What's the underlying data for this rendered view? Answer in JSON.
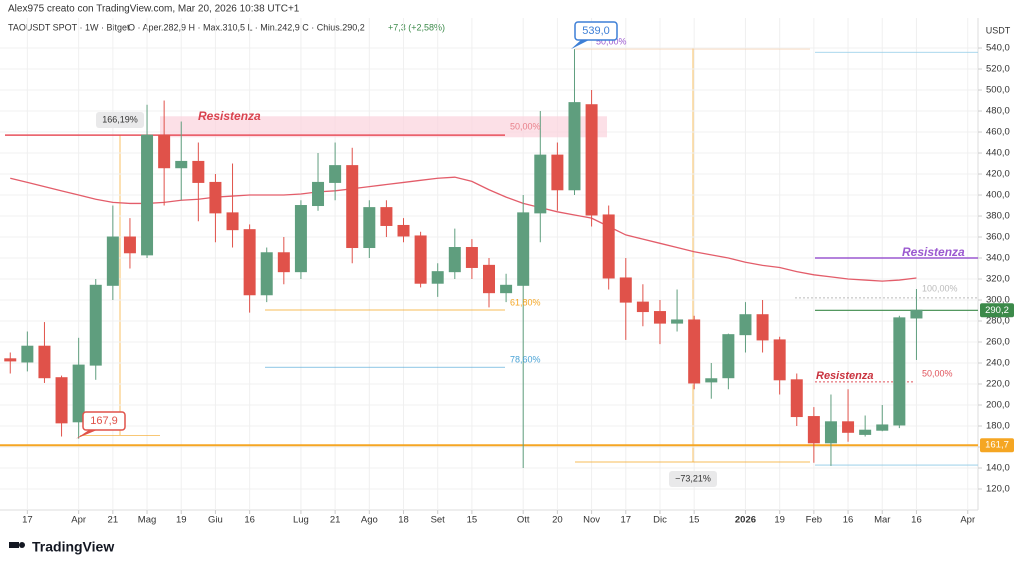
{
  "chart_data": {
    "type": "candlestick",
    "byline": "Alex975 creato con TradingView.com, Mar 20, 2026 10:38 UTC+1",
    "title": "TAOUSDT SPOT · 1W · Bitget",
    "ohlc_text": "O · Aper.282,9  H · Max.310,5  L · Min.242,9  C · Chius.290,2",
    "change_text": "+7,3 (+2,58%)",
    "unit": "USDT",
    "brand": "TradingView",
    "up_color": "#5f9e7e",
    "down_color": "#e0524a",
    "ma_color": "#e35d6a",
    "open": [
      244,
      241,
      256,
      226,
      184,
      238,
      314,
      360,
      343,
      457,
      426,
      432,
      412,
      383,
      367,
      305,
      345,
      327,
      390,
      412,
      428,
      350,
      388,
      371,
      361,
      316,
      327,
      350,
      333,
      307,
      314,
      383,
      438,
      405,
      486,
      381,
      321,
      298,
      289,
      278,
      281,
      222,
      226,
      267,
      286,
      262,
      224,
      189,
      164,
      184,
      172,
      176,
      181,
      282.9
    ],
    "high": [
      250,
      270,
      279,
      228,
      264,
      320,
      390,
      378,
      486,
      490,
      470,
      450,
      420,
      430,
      372,
      350,
      360,
      395,
      440,
      450,
      445,
      395,
      395,
      378,
      365,
      335,
      368,
      358,
      340,
      325,
      400,
      480,
      450,
      539,
      500,
      390,
      340,
      315,
      300,
      310,
      285,
      240,
      268,
      298,
      300,
      265,
      230,
      198,
      210,
      215,
      190,
      200,
      285,
      310.5
    ],
    "low": [
      230,
      232,
      221,
      170,
      167.9,
      224,
      300,
      330,
      340,
      390,
      395,
      375,
      355,
      350,
      288,
      298,
      315,
      320,
      385,
      395,
      335,
      340,
      360,
      355,
      312,
      303,
      320,
      320,
      293,
      298,
      140,
      355,
      385,
      400,
      370,
      310,
      262,
      275,
      258,
      270,
      215,
      206,
      215,
      250,
      250,
      210,
      180,
      145,
      142,
      165,
      170,
      175,
      178,
      242.9
    ],
    "close": [
      242,
      256,
      226,
      183,
      238,
      314,
      360,
      345,
      457,
      426,
      432,
      412,
      383,
      367,
      305,
      345,
      327,
      390,
      412,
      428,
      350,
      388,
      371,
      361,
      316,
      327,
      350,
      331,
      307,
      314,
      383,
      438,
      405,
      488,
      381,
      321,
      298,
      289,
      278,
      281,
      221,
      225,
      267,
      286,
      262,
      224,
      189,
      164,
      184,
      174,
      176,
      181,
      283,
      290.2
    ],
    "ma": [
      416,
      412,
      408,
      404,
      400,
      396,
      393,
      392,
      392,
      393,
      395,
      396,
      398,
      399,
      400,
      400,
      400,
      401,
      403,
      404,
      406,
      408,
      410,
      412,
      414,
      416,
      417,
      413,
      405,
      398,
      392,
      388,
      384,
      381,
      378,
      370,
      362,
      358,
      354,
      350,
      346,
      343,
      340,
      336,
      333,
      331,
      327,
      324,
      322,
      320,
      319,
      318,
      319,
      321
    ],
    "xlim": [
      -0.6,
      56.6
    ],
    "xticks": [
      {
        "value": 1,
        "label": "17"
      },
      {
        "value": 4,
        "label": "Apr"
      },
      {
        "value": 6,
        "label": "21"
      },
      {
        "value": 8,
        "label": "Mag"
      },
      {
        "value": 10,
        "label": "19"
      },
      {
        "value": 12,
        "label": "Giu"
      },
      {
        "value": 14,
        "label": "16"
      },
      {
        "value": 17,
        "label": "Lug"
      },
      {
        "value": 19,
        "label": "21"
      },
      {
        "value": 21,
        "label": "Ago"
      },
      {
        "value": 23,
        "label": "18"
      },
      {
        "value": 25,
        "label": "Set"
      },
      {
        "value": 27,
        "label": "15"
      },
      {
        "value": 30,
        "label": "Ott"
      },
      {
        "value": 32,
        "label": "20"
      },
      {
        "value": 34,
        "label": "Nov"
      },
      {
        "value": 36,
        "label": "17"
      },
      {
        "value": 38,
        "label": "Dic"
      },
      {
        "value": 40,
        "label": "15"
      },
      {
        "value": 43,
        "label": "2026"
      },
      {
        "value": 45,
        "label": "19"
      },
      {
        "value": 47,
        "label": "Feb"
      },
      {
        "value": 49,
        "label": "16"
      },
      {
        "value": 51,
        "label": "Mar"
      },
      {
        "value": 53,
        "label": "16"
      },
      {
        "value": 56,
        "label": "Apr"
      }
    ],
    "ylim": [
      100,
      568.6
    ],
    "yticks": [
      {
        "value": 120,
        "label": "120,0"
      },
      {
        "value": 140,
        "label": "140,0"
      },
      {
        "value": 160,
        "label": "160,0"
      },
      {
        "value": 180,
        "label": "180,0"
      },
      {
        "value": 200,
        "label": "200,0"
      },
      {
        "value": 220,
        "label": "220,0"
      },
      {
        "value": 240,
        "label": "240,0"
      },
      {
        "value": 260,
        "label": "260,0"
      },
      {
        "value": 280,
        "label": "280,0"
      },
      {
        "value": 300,
        "label": "300,0"
      },
      {
        "value": 320,
        "label": "320,0"
      },
      {
        "value": 340,
        "label": "340,0"
      },
      {
        "value": 360,
        "label": "360,0"
      },
      {
        "value": 380,
        "label": "380,0"
      },
      {
        "value": 400,
        "label": "400,0"
      },
      {
        "value": 420,
        "label": "420,0"
      },
      {
        "value": 440,
        "label": "440,0"
      },
      {
        "value": 460,
        "label": "460,0"
      },
      {
        "value": 480,
        "label": "480,0"
      },
      {
        "value": 500,
        "label": "500,0"
      },
      {
        "value": 520,
        "label": "520,0"
      },
      {
        "value": 540,
        "label": "540,0"
      }
    ],
    "grid": true,
    "band": {
      "low": 455,
      "high": 475,
      "color": "#fbd3dd"
    },
    "levels": [
      {
        "value": 457,
        "color": "#e8505b"
      },
      {
        "value": 161.7,
        "color": "#f5a623"
      },
      {
        "value": 340,
        "color": "#9b59d0"
      },
      {
        "value": 290.2,
        "color": "#3c8a4a"
      },
      {
        "value": 171,
        "color": "#f5a623"
      },
      {
        "value": 290.5,
        "color": "#f5a623"
      },
      {
        "value": 236,
        "color": "#4aa3d6"
      },
      {
        "value": 539,
        "color": "#f5c9a0"
      },
      {
        "value": 145.7,
        "color": "#f5a623"
      },
      {
        "value": 536,
        "color": "#8ecae6"
      },
      {
        "value": 142.8,
        "color": "#8ecae6"
      },
      {
        "value": 222,
        "color": "#e0525a"
      },
      {
        "value": 302,
        "color": "#bbbbbb"
      }
    ],
    "annotations": [
      "Resistenza",
      "Resistenza",
      "Resistenza",
      "166,19%",
      "50,00%",
      "61,80%",
      "78,60%",
      "50,00%",
      "100,00%",
      "50,00%",
      "−73,21%"
    ],
    "callouts": [
      {
        "value": 539,
        "label": "539,0",
        "color": "#3d7fd6"
      },
      {
        "value": 167.9,
        "label": "167,9",
        "color": "#e0524a"
      }
    ],
    "price_tags": [
      {
        "value": 290.2,
        "label": "290,2",
        "color": "#3c8a4a"
      },
      {
        "value": 161.7,
        "label": "161,7",
        "color": "#f5a623"
      }
    ]
  }
}
